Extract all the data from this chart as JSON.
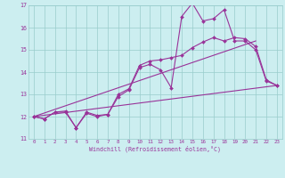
{
  "xlabel": "Windchill (Refroidissement éolien,°C)",
  "xlim": [
    -0.5,
    23.5
  ],
  "ylim": [
    11,
    17
  ],
  "yticks": [
    11,
    12,
    13,
    14,
    15,
    16,
    17
  ],
  "xticks": [
    0,
    1,
    2,
    3,
    4,
    5,
    6,
    7,
    8,
    9,
    10,
    11,
    12,
    13,
    14,
    15,
    16,
    17,
    18,
    19,
    20,
    21,
    22,
    23
  ],
  "bg_color": "#cceef0",
  "grid_color": "#99cccc",
  "line_color": "#993399",
  "series1_x": [
    0,
    1,
    2,
    3,
    4,
    5,
    6,
    7,
    8,
    9,
    10,
    11,
    12,
    13,
    14,
    15,
    16,
    17,
    18,
    19,
    20,
    21,
    22,
    23
  ],
  "series1_y": [
    12.0,
    11.9,
    12.2,
    12.2,
    11.5,
    12.15,
    12.0,
    12.1,
    12.9,
    13.2,
    14.2,
    14.35,
    14.1,
    13.3,
    16.5,
    17.1,
    16.3,
    16.4,
    16.8,
    15.4,
    15.4,
    15.0,
    13.6,
    13.4
  ],
  "series2_x": [
    0,
    1,
    2,
    3,
    4,
    5,
    6,
    7,
    8,
    9,
    10,
    11,
    12,
    13,
    14,
    15,
    16,
    17,
    18,
    19,
    20,
    21,
    22,
    23
  ],
  "series2_y": [
    12.0,
    11.9,
    12.2,
    12.25,
    11.5,
    12.2,
    12.05,
    12.1,
    13.0,
    13.25,
    14.3,
    14.5,
    14.55,
    14.65,
    14.75,
    15.1,
    15.35,
    15.55,
    15.4,
    15.55,
    15.5,
    15.15,
    13.65,
    13.4
  ],
  "trend1_x": [
    0,
    23
  ],
  "trend1_y": [
    12.0,
    13.4
  ],
  "trend2_x": [
    0,
    21
  ],
  "trend2_y": [
    12.0,
    15.4
  ]
}
